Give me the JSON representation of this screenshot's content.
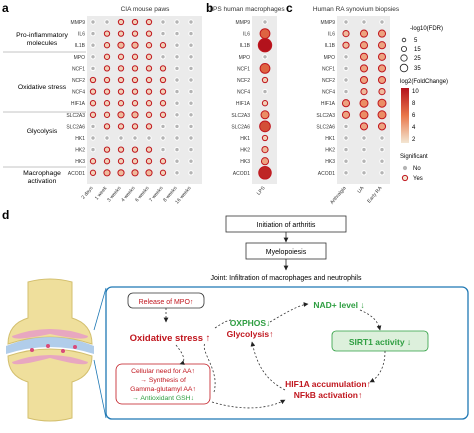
{
  "panel_letters": {
    "a": "a",
    "b": "b",
    "c": "c",
    "d": "d"
  },
  "panel_a": {
    "title": "CIA mouse paws",
    "groups": [
      {
        "label_lines": [
          "Pro-inflammatory",
          "molecules"
        ]
      },
      {
        "label_lines": [
          "Oxidative stress"
        ]
      },
      {
        "label_lines": [
          "Glycolysis"
        ]
      },
      {
        "label_lines": [
          "Macrophage",
          "activation"
        ]
      }
    ]
  },
  "panel_b": {
    "title": "LPS human macrophages"
  },
  "panel_c": {
    "title": "Human RA synovium biopsies"
  },
  "legend": {
    "size_title": "-log10(FDR)",
    "size_levels": [
      "5",
      "15",
      "25",
      "35"
    ],
    "color_title": "log2(FoldChange)",
    "color_ticks": [
      "10",
      "8",
      "6",
      "4",
      "2"
    ],
    "sig_title": "Significant",
    "sig_items": [
      "No",
      "Yes"
    ]
  },
  "colors": {
    "low": "#f3e6d2",
    "mid": "#e9774a",
    "high": "#b3121c",
    "nonsig_fill": "#b4b4b4",
    "sig_ring": "#c0161e",
    "nonsig_ring": "#ffffff",
    "panel_bg": "#ebebeb",
    "green": "#2e9e41",
    "red": "#c0161e",
    "box_border": "#1f78b4"
  },
  "chart_data": [
    {
      "type": "scatter",
      "title": "CIA mouse paws",
      "categories": [
        "2 days",
        "1 week",
        "3 weeks",
        "4 weeks",
        "6 weeks",
        "7 weeks",
        "8 weeks",
        "16 weeks"
      ],
      "genes": [
        "MMP9",
        "IL6",
        "IL1B",
        "MPO",
        "NCF1",
        "NCF2",
        "NCF4",
        "HIF1A",
        "SLC2A3",
        "SLC2A6",
        "HK1",
        "HK2",
        "HK3",
        "ACOD1"
      ],
      "series": [
        {
          "gene": "MMP9",
          "values": [
            0,
            0,
            1,
            1,
            1,
            0,
            0,
            0
          ],
          "significant": [
            0,
            0,
            1,
            1,
            1,
            0,
            0,
            0
          ]
        },
        {
          "gene": "IL6",
          "values": [
            0,
            1,
            1,
            1,
            1,
            0,
            0,
            0
          ],
          "significant": [
            0,
            1,
            1,
            1,
            1,
            0,
            0,
            0
          ]
        },
        {
          "gene": "IL1B",
          "values": [
            0,
            1,
            2,
            2,
            1,
            1,
            0,
            0
          ],
          "significant": [
            0,
            1,
            1,
            1,
            1,
            1,
            0,
            0
          ]
        },
        {
          "gene": "MPO",
          "values": [
            0,
            1,
            1,
            1,
            1,
            0,
            0,
            0
          ],
          "significant": [
            0,
            1,
            1,
            1,
            1,
            0,
            0,
            0
          ]
        },
        {
          "gene": "NCF1",
          "values": [
            0,
            1,
            1,
            1,
            1,
            1,
            0,
            0
          ],
          "significant": [
            0,
            1,
            1,
            1,
            1,
            1,
            0,
            0
          ]
        },
        {
          "gene": "NCF2",
          "values": [
            1,
            1,
            1,
            1,
            1,
            1,
            0,
            0
          ],
          "significant": [
            1,
            1,
            1,
            1,
            1,
            1,
            0,
            0
          ]
        },
        {
          "gene": "NCF4",
          "values": [
            1,
            1,
            1,
            1,
            1,
            1,
            0,
            0
          ],
          "significant": [
            1,
            1,
            1,
            1,
            1,
            1,
            0,
            0
          ]
        },
        {
          "gene": "HIF1A",
          "values": [
            1,
            1,
            1,
            1,
            1,
            1,
            0,
            0
          ],
          "significant": [
            1,
            1,
            1,
            1,
            1,
            1,
            0,
            0
          ]
        },
        {
          "gene": "SLC2A3",
          "values": [
            1,
            1,
            2,
            2,
            1,
            1,
            0,
            0
          ],
          "significant": [
            1,
            1,
            1,
            1,
            1,
            1,
            0,
            0
          ]
        },
        {
          "gene": "SLC2A6",
          "values": [
            0,
            1,
            1,
            1,
            1,
            0,
            0,
            0
          ],
          "significant": [
            0,
            1,
            1,
            1,
            1,
            0,
            0,
            0
          ]
        },
        {
          "gene": "HK1",
          "values": [
            0,
            0,
            0,
            0,
            0,
            0,
            0,
            0
          ],
          "significant": [
            0,
            0,
            0,
            0,
            0,
            0,
            0,
            0
          ]
        },
        {
          "gene": "HK2",
          "values": [
            0,
            1,
            1,
            1,
            1,
            0,
            0,
            0
          ],
          "significant": [
            0,
            1,
            1,
            1,
            1,
            0,
            0,
            0
          ]
        },
        {
          "gene": "HK3",
          "values": [
            1,
            1,
            1,
            1,
            1,
            1,
            0,
            0
          ],
          "significant": [
            1,
            1,
            1,
            1,
            1,
            1,
            0,
            0
          ]
        },
        {
          "gene": "ACOD1",
          "values": [
            1,
            2,
            2,
            2,
            2,
            1,
            0,
            0
          ],
          "significant": [
            1,
            1,
            1,
            1,
            1,
            1,
            0,
            0
          ]
        }
      ]
    },
    {
      "type": "scatter",
      "title": "LPS human macrophages",
      "categories": [
        "LPS"
      ],
      "genes": [
        "MMP9",
        "IL6",
        "IL1B",
        "MPO",
        "NCF1",
        "NCF2",
        "NCF4",
        "HIF1A",
        "SLC2A3",
        "SLC2A6",
        "HK1",
        "HK2",
        "HK3",
        "ACOD1"
      ],
      "series": [
        {
          "gene": "MMP9",
          "values": [
            0
          ],
          "significant": [
            0
          ]
        },
        {
          "gene": "IL6",
          "values": [
            6
          ],
          "significant": [
            1
          ]
        },
        {
          "gene": "IL1B",
          "values": [
            10
          ],
          "significant": [
            1
          ]
        },
        {
          "gene": "MPO",
          "values": [
            0
          ],
          "significant": [
            0
          ]
        },
        {
          "gene": "NCF1",
          "values": [
            6
          ],
          "significant": [
            1
          ]
        },
        {
          "gene": "NCF2",
          "values": [
            1
          ],
          "significant": [
            1
          ]
        },
        {
          "gene": "NCF4",
          "values": [
            0
          ],
          "significant": [
            0
          ]
        },
        {
          "gene": "HIF1A",
          "values": [
            1
          ],
          "significant": [
            1
          ]
        },
        {
          "gene": "SLC2A3",
          "values": [
            4
          ],
          "significant": [
            1
          ]
        },
        {
          "gene": "SLC2A6",
          "values": [
            7
          ],
          "significant": [
            1
          ]
        },
        {
          "gene": "HK1",
          "values": [
            1
          ],
          "significant": [
            1
          ]
        },
        {
          "gene": "HK2",
          "values": [
            2
          ],
          "significant": [
            1
          ]
        },
        {
          "gene": "HK3",
          "values": [
            3
          ],
          "significant": [
            1
          ]
        },
        {
          "gene": "ACOD1",
          "values": [
            9
          ],
          "significant": [
            1
          ]
        }
      ]
    },
    {
      "type": "scatter",
      "title": "Human RA synovium biopsies",
      "categories": [
        "Arthralgia",
        "UA",
        "Early RA"
      ],
      "genes": [
        "MMP9",
        "IL6",
        "IL1B",
        "MPO",
        "NCF1",
        "NCF2",
        "NCF4",
        "HIF1A",
        "SLC2A3",
        "SLC2A6",
        "HK1",
        "HK2",
        "HK3",
        "ACOD1"
      ],
      "series": [
        {
          "gene": "MMP9",
          "values": [
            0,
            0,
            0
          ],
          "significant": [
            0,
            0,
            0
          ]
        },
        {
          "gene": "IL6",
          "values": [
            2,
            3,
            3
          ],
          "significant": [
            1,
            1,
            1
          ]
        },
        {
          "gene": "IL1B",
          "values": [
            2,
            3,
            3
          ],
          "significant": [
            1,
            1,
            1
          ]
        },
        {
          "gene": "MPO",
          "values": [
            0,
            3,
            3
          ],
          "significant": [
            0,
            1,
            1
          ]
        },
        {
          "gene": "NCF1",
          "values": [
            0,
            3,
            3
          ],
          "significant": [
            0,
            1,
            1
          ]
        },
        {
          "gene": "NCF2",
          "values": [
            0,
            3,
            3
          ],
          "significant": [
            0,
            1,
            1
          ]
        },
        {
          "gene": "NCF4",
          "values": [
            0,
            2,
            2
          ],
          "significant": [
            0,
            1,
            1
          ]
        },
        {
          "gene": "HIF1A",
          "values": [
            3,
            4,
            4
          ],
          "significant": [
            1,
            1,
            1
          ]
        },
        {
          "gene": "SLC2A3",
          "values": [
            3,
            4,
            4
          ],
          "significant": [
            1,
            1,
            1
          ]
        },
        {
          "gene": "SLC2A6",
          "values": [
            0,
            3,
            3
          ],
          "significant": [
            0,
            1,
            1
          ]
        },
        {
          "gene": "HK1",
          "values": [
            0,
            0,
            0
          ],
          "significant": [
            0,
            0,
            0
          ]
        },
        {
          "gene": "HK2",
          "values": [
            0,
            0,
            0
          ],
          "significant": [
            0,
            0,
            0
          ]
        },
        {
          "gene": "HK3",
          "values": [
            0,
            0,
            0
          ],
          "significant": [
            0,
            0,
            0
          ]
        },
        {
          "gene": "ACOD1",
          "values": [
            0,
            0,
            0
          ],
          "significant": [
            0,
            0,
            0
          ]
        }
      ]
    }
  ],
  "panel_d": {
    "flow": {
      "initiation": "Initiation of arthritis",
      "myelopoiesis": "Myelopoiesis",
      "joint": "Joint: Infiltration of macrophages and neutrophils"
    },
    "mechanism": {
      "release_mpo": "Release of MPO↑",
      "oxidative_stress": "Oxidative stress ↑",
      "nad_level": "NAD+ level ↓",
      "oxphos": "OXPHOS↓",
      "glycolysis": "Glycolysis↑",
      "sirt1": "SIRT1 activity ↓",
      "cellular_need": "Cellular need for AA↑",
      "synthesis_line1": "→ Synthesis of",
      "synthesis_line2": "Gamma-glutamyl AA↑",
      "antioxidant": "→ Antioxidant GSH↓",
      "hif1a": "HIF1A accumulation↑",
      "nfkb": "NFkB activation↑"
    }
  }
}
